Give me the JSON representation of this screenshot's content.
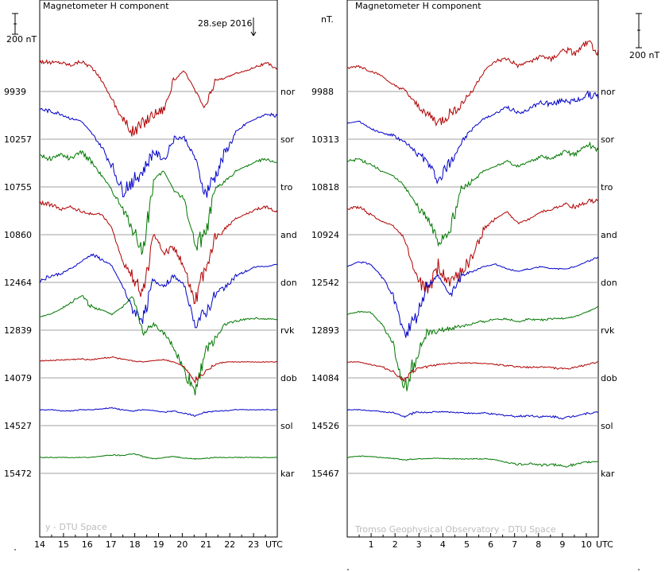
{
  "chart_data": [
    {
      "type": "line",
      "title": "Magnetometer H component",
      "annotation": "28.sep 2016",
      "annotation_x": 23.0,
      "x_ticks": [
        14,
        15,
        16,
        17,
        18,
        19,
        20,
        21,
        22,
        23
      ],
      "x_unit": "UTC",
      "xlim": [
        14,
        24
      ],
      "scale_label": "200 nT",
      "credit": "y - DTU Space",
      "series": [
        {
          "name": "nor",
          "baseline": "9939",
          "color": "#b00000",
          "values": [
            30,
            27,
            28,
            22,
            30,
            18,
            -10,
            -50,
            -90,
            -120,
            -100,
            -80,
            -70,
            -10,
            10,
            -30,
            -70,
            -10,
            -5,
            5,
            10,
            20,
            25,
            15
          ]
        },
        {
          "name": "sor",
          "baseline": "10257",
          "color": "#0000c8",
          "values": [
            30,
            25,
            20,
            10,
            5,
            -20,
            -50,
            -90,
            -140,
            -120,
            -100,
            -60,
            -75,
            -30,
            -30,
            -70,
            -150,
            -110,
            -60,
            -20,
            0,
            10,
            20,
            15
          ]
        },
        {
          "name": "tro",
          "baseline": "10755",
          "color": "#007800",
          "values": [
            35,
            25,
            35,
            25,
            40,
            20,
            -10,
            -40,
            -80,
            -120,
            -170,
            -20,
            0,
            -40,
            -60,
            -150,
            -140,
            -40,
            -20,
            0,
            10,
            20,
            25,
            15
          ]
        },
        {
          "name": "and",
          "baseline": "10860",
          "color": "#b00000",
          "values": [
            35,
            30,
            20,
            25,
            15,
            10,
            10,
            -20,
            -90,
            -120,
            -160,
            -30,
            -70,
            -60,
            -100,
            -170,
            -110,
            -40,
            -20,
            0,
            10,
            20,
            25,
            15
          ]
        },
        {
          "name": "don",
          "baseline": "12464",
          "color": "#0000c8",
          "values": [
            -30,
            -20,
            -15,
            -5,
            10,
            25,
            15,
            0,
            -40,
            -90,
            -110,
            -30,
            -40,
            -20,
            -40,
            -120,
            -100,
            -60,
            -40,
            -20,
            -10,
            0,
            0,
            5
          ]
        },
        {
          "name": "rvk",
          "baseline": "12839",
          "color": "#007800",
          "values": [
            -5,
            0,
            10,
            25,
            40,
            15,
            10,
            0,
            15,
            40,
            -40,
            -20,
            -40,
            -70,
            -120,
            -160,
            -80,
            -50,
            -20,
            -15,
            -10,
            -8,
            -10,
            -10
          ]
        },
        {
          "name": "dob",
          "baseline": "14079",
          "color": "#b00000",
          "values": [
            3,
            3,
            4,
            5,
            6,
            5,
            8,
            10,
            5,
            2,
            0,
            3,
            5,
            0,
            -10,
            -40,
            -20,
            -5,
            0,
            0,
            0,
            0,
            0,
            0
          ]
        },
        {
          "name": "sol",
          "baseline": "14527",
          "color": "#0000c8",
          "values": [
            0,
            0,
            -2,
            -3,
            0,
            0,
            2,
            4,
            0,
            -3,
            0,
            -2,
            -5,
            -3,
            -8,
            -12,
            -6,
            -3,
            -2,
            0,
            0,
            0,
            0,
            0
          ]
        },
        {
          "name": "kar",
          "baseline": "15472",
          "color": "#007800",
          "values": [
            0,
            0,
            0,
            0,
            0,
            0,
            3,
            5,
            4,
            8,
            2,
            -3,
            0,
            2,
            -1,
            -3,
            -2,
            0,
            0,
            0,
            0,
            0,
            0,
            0
          ]
        }
      ]
    },
    {
      "type": "line",
      "title": "Magnetometer H component",
      "x_ticks": [
        1,
        2,
        3,
        4,
        5,
        6,
        7,
        8,
        9,
        10
      ],
      "x_unit": "UTC",
      "xlim": [
        0,
        10.5
      ],
      "unit_label": "nT.",
      "scale_label": "200 nT",
      "credit": "Tromso Geophysical Observatory - DTU Space",
      "series": [
        {
          "name": "nor",
          "baseline": "9988",
          "color": "#b00000",
          "values": [
            15,
            20,
            10,
            0,
            -20,
            -30,
            -60,
            -80,
            -100,
            -80,
            -60,
            -30,
            10,
            30,
            35,
            20,
            30,
            40,
            35,
            55,
            45,
            70,
            50
          ]
        },
        {
          "name": "sor",
          "baseline": "10313",
          "color": "#0000c8",
          "values": [
            0,
            5,
            -10,
            -20,
            -25,
            -40,
            -60,
            -80,
            -120,
            -80,
            -40,
            -10,
            10,
            20,
            35,
            20,
            30,
            45,
            40,
            50,
            45,
            60,
            55
          ]
        },
        {
          "name": "tro",
          "baseline": "10818",
          "color": "#007800",
          "values": [
            20,
            25,
            15,
            0,
            -10,
            -30,
            -70,
            -100,
            -150,
            -120,
            -40,
            -20,
            0,
            10,
            20,
            10,
            20,
            30,
            25,
            40,
            35,
            55,
            45
          ]
        },
        {
          "name": "and",
          "baseline": "10924",
          "color": "#b00000",
          "values": [
            20,
            25,
            10,
            -5,
            -15,
            -40,
            -120,
            -150,
            -100,
            -140,
            -110,
            -80,
            -20,
            0,
            15,
            -10,
            0,
            15,
            20,
            30,
            25,
            35,
            40
          ]
        },
        {
          "name": "don",
          "baseline": "12542",
          "color": "#0000c8",
          "values": [
            0,
            10,
            5,
            -20,
            -60,
            -140,
            -110,
            -40,
            -20,
            -60,
            -20,
            -10,
            0,
            5,
            -5,
            -10,
            -5,
            0,
            -5,
            -5,
            0,
            10,
            20
          ]
        },
        {
          "name": "rvk",
          "baseline": "12893",
          "color": "#007800",
          "values": [
            0,
            5,
            5,
            -20,
            -60,
            -160,
            -90,
            -40,
            -35,
            -30,
            -25,
            -20,
            -15,
            -10,
            -10,
            -15,
            -10,
            -12,
            -10,
            -8,
            -5,
            5,
            15
          ]
        },
        {
          "name": "dob",
          "baseline": "14084",
          "color": "#b00000",
          "values": [
            0,
            0,
            -5,
            -10,
            -20,
            -40,
            -15,
            -10,
            -5,
            -3,
            -2,
            -2,
            -3,
            -5,
            -8,
            -10,
            -12,
            -10,
            -12,
            -15,
            -12,
            -5,
            0
          ]
        },
        {
          "name": "sol",
          "baseline": "14526",
          "color": "#0000c8",
          "values": [
            0,
            0,
            -2,
            -4,
            -6,
            -15,
            -5,
            -6,
            -4,
            -5,
            -6,
            -8,
            -7,
            -10,
            -12,
            -14,
            -12,
            -15,
            -14,
            -18,
            -12,
            -8,
            -5
          ]
        },
        {
          "name": "kar",
          "baseline": "15467",
          "color": "#007800",
          "values": [
            0,
            3,
            2,
            0,
            -2,
            -5,
            -3,
            -2,
            -2,
            -3,
            -3,
            -3,
            -3,
            -5,
            -10,
            -15,
            -12,
            -16,
            -15,
            -18,
            -15,
            -10,
            -8
          ]
        }
      ]
    }
  ]
}
